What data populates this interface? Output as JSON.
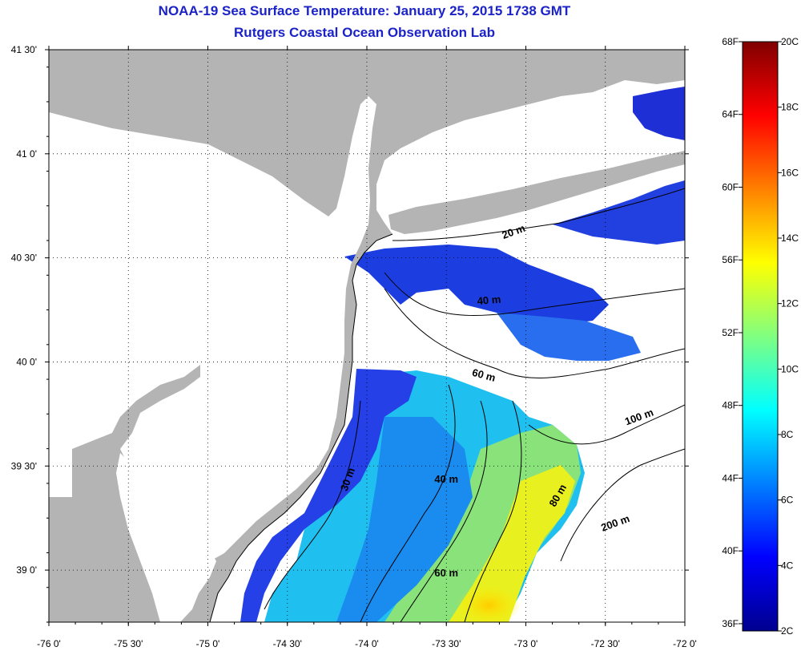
{
  "title_line1": "NOAA-19 Sea Surface Temperature:  January 25, 2015 1738 GMT",
  "title_line2": "Rutgers Coastal Ocean Observation Lab",
  "map": {
    "lon_range": [
      -76,
      -72
    ],
    "lat_range": [
      38.75,
      41.5
    ],
    "x_ticks": [
      {
        "value": -76,
        "label": "-76 0'"
      },
      {
        "value": -75.5,
        "label": "-75 30'"
      },
      {
        "value": -75,
        "label": "-75 0'"
      },
      {
        "value": -74.5,
        "label": "-74 30'"
      },
      {
        "value": -74,
        "label": "-74 0'"
      },
      {
        "value": -73.5,
        "label": "-73 30'"
      },
      {
        "value": -73,
        "label": "-73 0'"
      },
      {
        "value": -72.5,
        "label": "-72 30'"
      },
      {
        "value": -72,
        "label": "-72 0'"
      }
    ],
    "y_ticks": [
      {
        "value": 41.5,
        "label": "41 30'"
      },
      {
        "value": 41,
        "label": "41 0'"
      },
      {
        "value": 40.5,
        "label": "40 30'"
      },
      {
        "value": 40,
        "label": "40 0'"
      },
      {
        "value": 39.5,
        "label": "39 30'"
      },
      {
        "value": 39,
        "label": "39 0'"
      }
    ],
    "grid": true,
    "land_color": "#b4b4b4",
    "no_data_color": "#ffffff",
    "contour_labels": [
      {
        "text": "20 m",
        "lon": -73.07,
        "lat": 40.61,
        "rotate": -20
      },
      {
        "text": "40 m",
        "lon": -73.23,
        "lat": 40.28,
        "rotate": -5
      },
      {
        "text": "60 m",
        "lon": -73.27,
        "lat": 39.92,
        "rotate": 15
      },
      {
        "text": "100 m",
        "lon": -72.28,
        "lat": 39.72,
        "rotate": -20
      },
      {
        "text": "200 m",
        "lon": -72.43,
        "lat": 39.21,
        "rotate": -20
      },
      {
        "text": "30 m",
        "lon": -74.1,
        "lat": 39.43,
        "rotate": -70
      },
      {
        "text": "40 m",
        "lon": -73.5,
        "lat": 39.42,
        "rotate": 0
      },
      {
        "text": "80 m",
        "lon": -72.78,
        "lat": 39.35,
        "rotate": -60
      },
      {
        "text": "60 m",
        "lon": -73.5,
        "lat": 38.97,
        "rotate": 0
      }
    ]
  },
  "colorbar": {
    "min_c": 2,
    "max_c": 20,
    "celsius_ticks": [
      {
        "value": 20,
        "label": "20C"
      },
      {
        "value": 18,
        "label": "18C"
      },
      {
        "value": 16,
        "label": "16C"
      },
      {
        "value": 14,
        "label": "14C"
      },
      {
        "value": 12,
        "label": "12C"
      },
      {
        "value": 10,
        "label": "10C"
      },
      {
        "value": 8,
        "label": "8C"
      },
      {
        "value": 6,
        "label": "6C"
      },
      {
        "value": 4,
        "label": "4C"
      },
      {
        "value": 2,
        "label": "2C"
      }
    ],
    "fahrenheit_ticks": [
      {
        "value": 68,
        "label": "68F"
      },
      {
        "value": 64,
        "label": "64F"
      },
      {
        "value": 60,
        "label": "60F"
      },
      {
        "value": 56,
        "label": "56F"
      },
      {
        "value": 52,
        "label": "52F"
      },
      {
        "value": 48,
        "label": "48F"
      },
      {
        "value": 44,
        "label": "44F"
      },
      {
        "value": 40,
        "label": "40F"
      },
      {
        "value": 36,
        "label": "36F"
      }
    ],
    "colors": [
      "#00008f",
      "#0000ff",
      "#0080ff",
      "#00ffff",
      "#80ff80",
      "#ffff00",
      "#ff8000",
      "#ff0000",
      "#800000"
    ]
  }
}
